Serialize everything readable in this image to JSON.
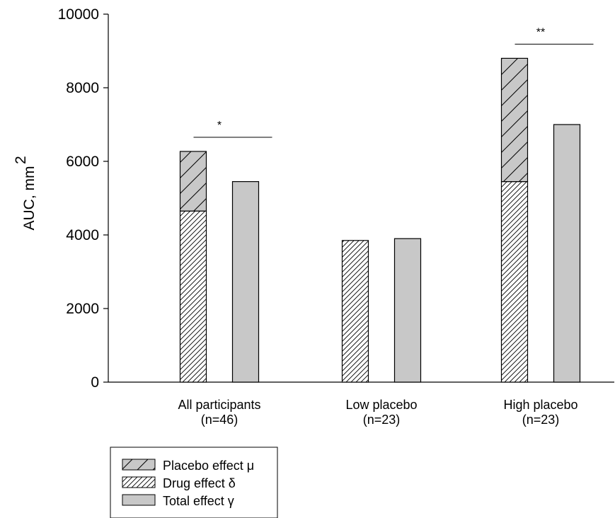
{
  "chart_data": {
    "type": "bar",
    "title": "",
    "ylabel": "AUC, mm",
    "ylabel_superscript": "2",
    "ylim": [
      0,
      10000
    ],
    "yticks": [
      0,
      2000,
      4000,
      6000,
      8000,
      10000
    ],
    "groups": [
      {
        "label": "All participants",
        "sublabel": "(n=46)",
        "drug": 4650,
        "placebo": 1620,
        "total": 5450,
        "significance": "*"
      },
      {
        "label": "Low placebo",
        "sublabel": "(n=23)",
        "drug": 3850,
        "placebo": 0,
        "total": 3900,
        "significance": ""
      },
      {
        "label": "High placebo",
        "sublabel": "(n=23)",
        "drug": 5450,
        "placebo": 3350,
        "total": 7000,
        "significance": "**"
      }
    ],
    "series": [
      {
        "name": "Placebo effect μ",
        "pattern": "sparse-hatch",
        "color": "#c8c8c8"
      },
      {
        "name": "Drug effect δ",
        "pattern": "dense-hatch",
        "color": "#ffffff"
      },
      {
        "name": "Total effect γ",
        "pattern": "solid",
        "color": "#c8c8c8"
      }
    ],
    "legend_position": "bottom-left"
  }
}
